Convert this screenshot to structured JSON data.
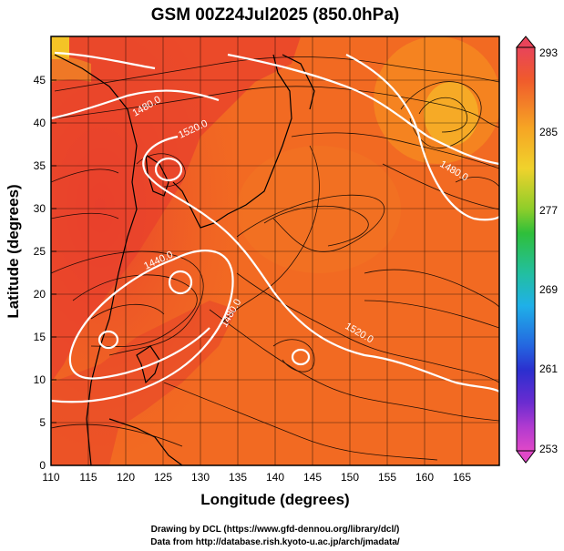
{
  "title": "GSM 00Z24Jul2025 (850.0hPa)",
  "xlabel": "Longitude (degrees)",
  "ylabel": "Latitude  (degrees)",
  "x_ticks": [
    "110",
    "115",
    "120",
    "125",
    "130",
    "135",
    "140",
    "145",
    "150",
    "155",
    "160",
    "165"
  ],
  "y_ticks": [
    "0",
    "5",
    "10",
    "15",
    "20",
    "25",
    "30",
    "35",
    "40",
    "45"
  ],
  "colorbar": {
    "labels": [
      "293",
      "285",
      "277",
      "269",
      "261",
      "253"
    ],
    "colors_top_to_bottom": [
      "#e8445a",
      "#f27a2a",
      "#f6a524",
      "#f0d22c",
      "#8fce2a",
      "#2fbf3a",
      "#22bfa0",
      "#1fb0e8",
      "#2466e0",
      "#2b2fcf",
      "#6a2cd0",
      "#b03ad0",
      "#e048c8"
    ]
  },
  "contour_labels": [
    "1480.0",
    "1520.0",
    "1480.0",
    "1440.0",
    "1480.0",
    "1520.0"
  ],
  "credits": {
    "line1": "Drawing by DCL (https://www.gfd-dennou.org/library/dcl/)",
    "line2": "Data from http://database.rish.kyoto-u.ac.jp/arch/jmadata/"
  },
  "chart_data": {
    "type": "heatmap",
    "title": "GSM 00Z24Jul2025 (850.0hPa)",
    "xlabel": "Longitude (degrees)",
    "ylabel": "Latitude  (degrees)",
    "xlim": [
      110,
      170
    ],
    "ylim": [
      0,
      50
    ],
    "color_range": [
      253,
      293
    ],
    "grid": true,
    "contour_values": [
      1440,
      1480,
      1520
    ],
    "overlay": "streamlines"
  }
}
